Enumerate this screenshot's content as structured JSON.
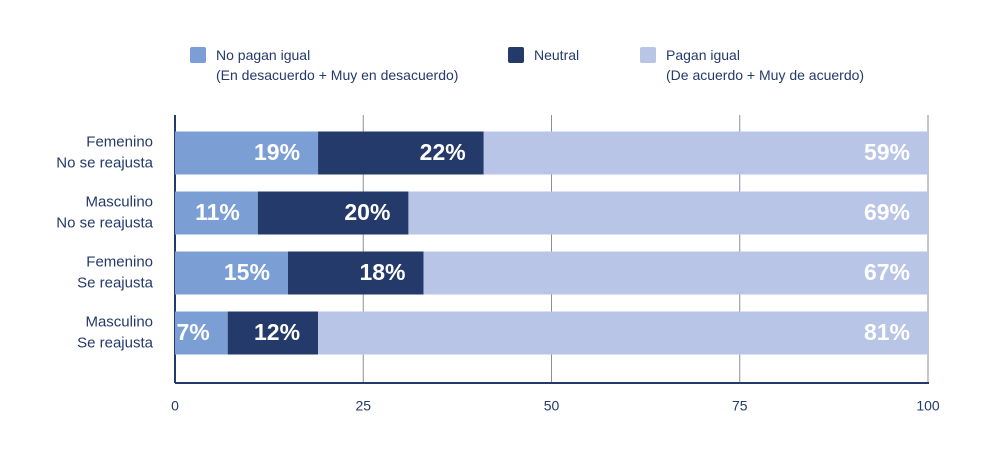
{
  "chart_data": {
    "type": "stacked-bar-horizontal",
    "categories": [
      [
        "Femenino",
        "No se reajusta"
      ],
      [
        "Masculino",
        "No se reajusta"
      ],
      [
        "Femenino",
        "Se reajusta"
      ],
      [
        "Masculino",
        "Se reajusta"
      ]
    ],
    "series": [
      {
        "name": "No pagan igual\n(En desacuerdo + Muy en desacuerdo)",
        "color": "#7b9fd4",
        "values": [
          19,
          11,
          15,
          7
        ],
        "value_labels": [
          "19%",
          "11%",
          "15%",
          "7%"
        ]
      },
      {
        "name": "Neutral",
        "color": "#243a6b",
        "values": [
          22,
          20,
          18,
          12
        ],
        "value_labels": [
          "22%",
          "20%",
          "18%",
          "12%"
        ]
      },
      {
        "name": "Pagan igual\n(De acuerdo + Muy de acuerdo)",
        "color": "#b9c5e6",
        "values": [
          59,
          69,
          67,
          81
        ],
        "value_labels": [
          "59%",
          "69%",
          "67%",
          "81%"
        ]
      }
    ],
    "xlim": [
      0,
      100
    ],
    "xticks": [
      0,
      25,
      50,
      75,
      100
    ],
    "grid": true
  }
}
